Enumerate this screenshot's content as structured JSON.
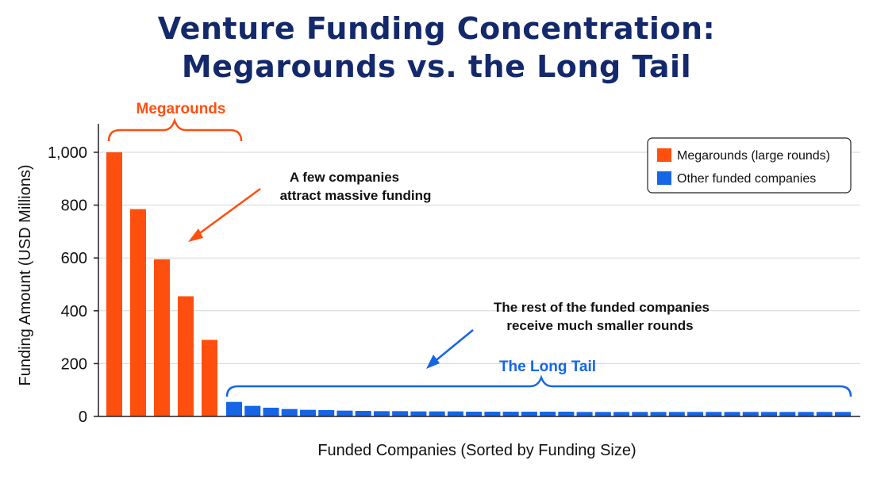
{
  "title_line1": "Venture Funding Concentration:",
  "title_line2": "Megarounds vs. the Long Tail",
  "colors": {
    "megarounds": "#ff4f0f",
    "other": "#1565e6",
    "title": "#14296b",
    "megarounds_label": "#ff4f0f",
    "long_tail_label": "#1565e6"
  },
  "chart_data": {
    "type": "bar",
    "xlabel": "Funded Companies (Sorted by Funding Size)",
    "ylabel": "Funding Amount (USD Millions)",
    "ylim": [
      0,
      1100
    ],
    "yticks": [
      0,
      200,
      400,
      600,
      800,
      1000
    ],
    "ytick_labels": [
      "0",
      "200",
      "400",
      "600",
      "800",
      "1,000"
    ],
    "grid": true,
    "legend_position": "top-right",
    "series": [
      {
        "name": "Megarounds (large rounds)",
        "values": [
          1000,
          785,
          595,
          455,
          290
        ]
      },
      {
        "name": "Other funded companies",
        "values": [
          55,
          40,
          33,
          28,
          25,
          24,
          22,
          21,
          20,
          20,
          19,
          19,
          19,
          18,
          18,
          18,
          18,
          18,
          18,
          17,
          17,
          17,
          17,
          17,
          17,
          17,
          17,
          17,
          17,
          17,
          17,
          17,
          17,
          17
        ]
      }
    ],
    "annotations": {
      "megarounds_bracket": "Megarounds",
      "megarounds_callout": [
        "A few companies",
        "attract massive funding"
      ],
      "long_tail_bracket": "The Long Tail",
      "long_tail_callout": [
        "The rest of the funded companies",
        "receive much smaller rounds"
      ]
    }
  }
}
